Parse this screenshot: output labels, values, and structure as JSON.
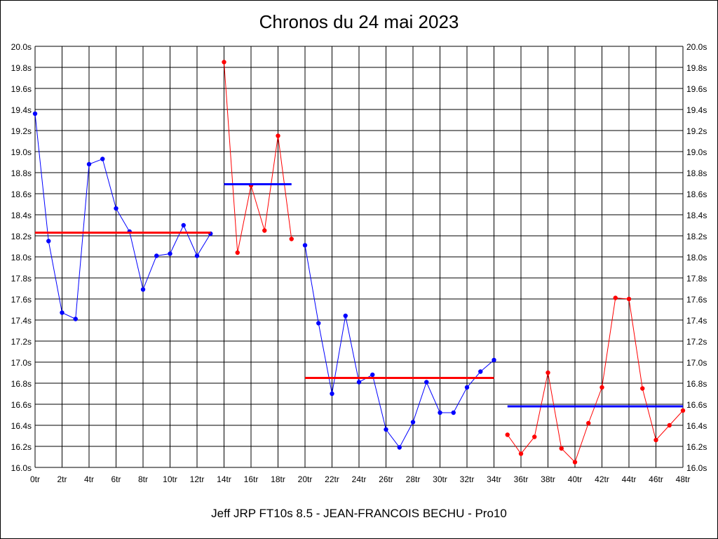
{
  "chart_data": {
    "type": "line",
    "title": "Chronos du 24 mai 2023",
    "footer": "Jeff JRP FT10s 8.5 - JEAN-FRANCOIS BECHU - Pro10",
    "xlim": [
      0,
      48
    ],
    "ylim": [
      16.0,
      20.0
    ],
    "grid": true,
    "y_ticks": [
      "16.0s",
      "16.2s",
      "16.4s",
      "16.6s",
      "16.8s",
      "17.0s",
      "17.2s",
      "17.4s",
      "17.6s",
      "17.8s",
      "18.0s",
      "18.2s",
      "18.4s",
      "18.6s",
      "18.8s",
      "19.0s",
      "19.2s",
      "19.4s",
      "19.6s",
      "19.8s",
      "20.0s"
    ],
    "x_ticks": [
      "0tr",
      "2tr",
      "4tr",
      "6tr",
      "8tr",
      "10tr",
      "12tr",
      "14tr",
      "16tr",
      "18tr",
      "20tr",
      "22tr",
      "24tr",
      "26tr",
      "28tr",
      "30tr",
      "32tr",
      "34tr",
      "36tr",
      "38tr",
      "40tr",
      "42tr",
      "44tr",
      "46tr",
      "48tr"
    ],
    "series": [
      {
        "color": "#0000ff",
        "x": [
          0,
          1,
          2,
          3,
          4,
          5,
          6,
          7,
          8,
          9,
          10,
          11,
          12,
          13
        ],
        "values": [
          19.36,
          18.15,
          17.47,
          17.41,
          18.88,
          18.93,
          18.46,
          18.24,
          17.69,
          18.01,
          18.03,
          18.3,
          18.01,
          18.22
        ]
      },
      {
        "color": "#ff0000",
        "x": [
          14,
          15,
          16,
          17,
          18,
          19
        ],
        "values": [
          19.85,
          18.04,
          18.68,
          18.25,
          19.15,
          18.17
        ]
      },
      {
        "color": "#0000ff",
        "x": [
          20,
          21,
          22,
          23,
          24,
          25,
          26,
          27,
          28,
          29,
          30,
          31,
          32,
          33,
          34
        ],
        "values": [
          18.11,
          17.37,
          16.7,
          17.44,
          16.81,
          16.88,
          16.36,
          16.19,
          16.43,
          16.81,
          16.52,
          16.52,
          16.76,
          16.91,
          17.02
        ]
      },
      {
        "color": "#ff0000",
        "x": [
          35,
          36,
          37,
          38,
          39,
          40,
          41,
          42,
          43,
          44,
          45,
          46,
          47,
          48
        ],
        "values": [
          16.31,
          16.13,
          16.29,
          16.9,
          16.18,
          16.05,
          16.42,
          16.76,
          17.61,
          17.6,
          16.75,
          16.26,
          16.4,
          16.54
        ]
      }
    ],
    "averages": [
      {
        "color": "#ff0000",
        "x_start": 0,
        "x_end": 13,
        "value": 18.23
      },
      {
        "color": "#0000ff",
        "x_start": 14,
        "x_end": 19,
        "value": 18.69
      },
      {
        "color": "#ff0000",
        "x_start": 20,
        "x_end": 34,
        "value": 16.85
      },
      {
        "color": "#0000ff",
        "x_start": 35,
        "x_end": 48,
        "value": 16.58
      }
    ]
  }
}
